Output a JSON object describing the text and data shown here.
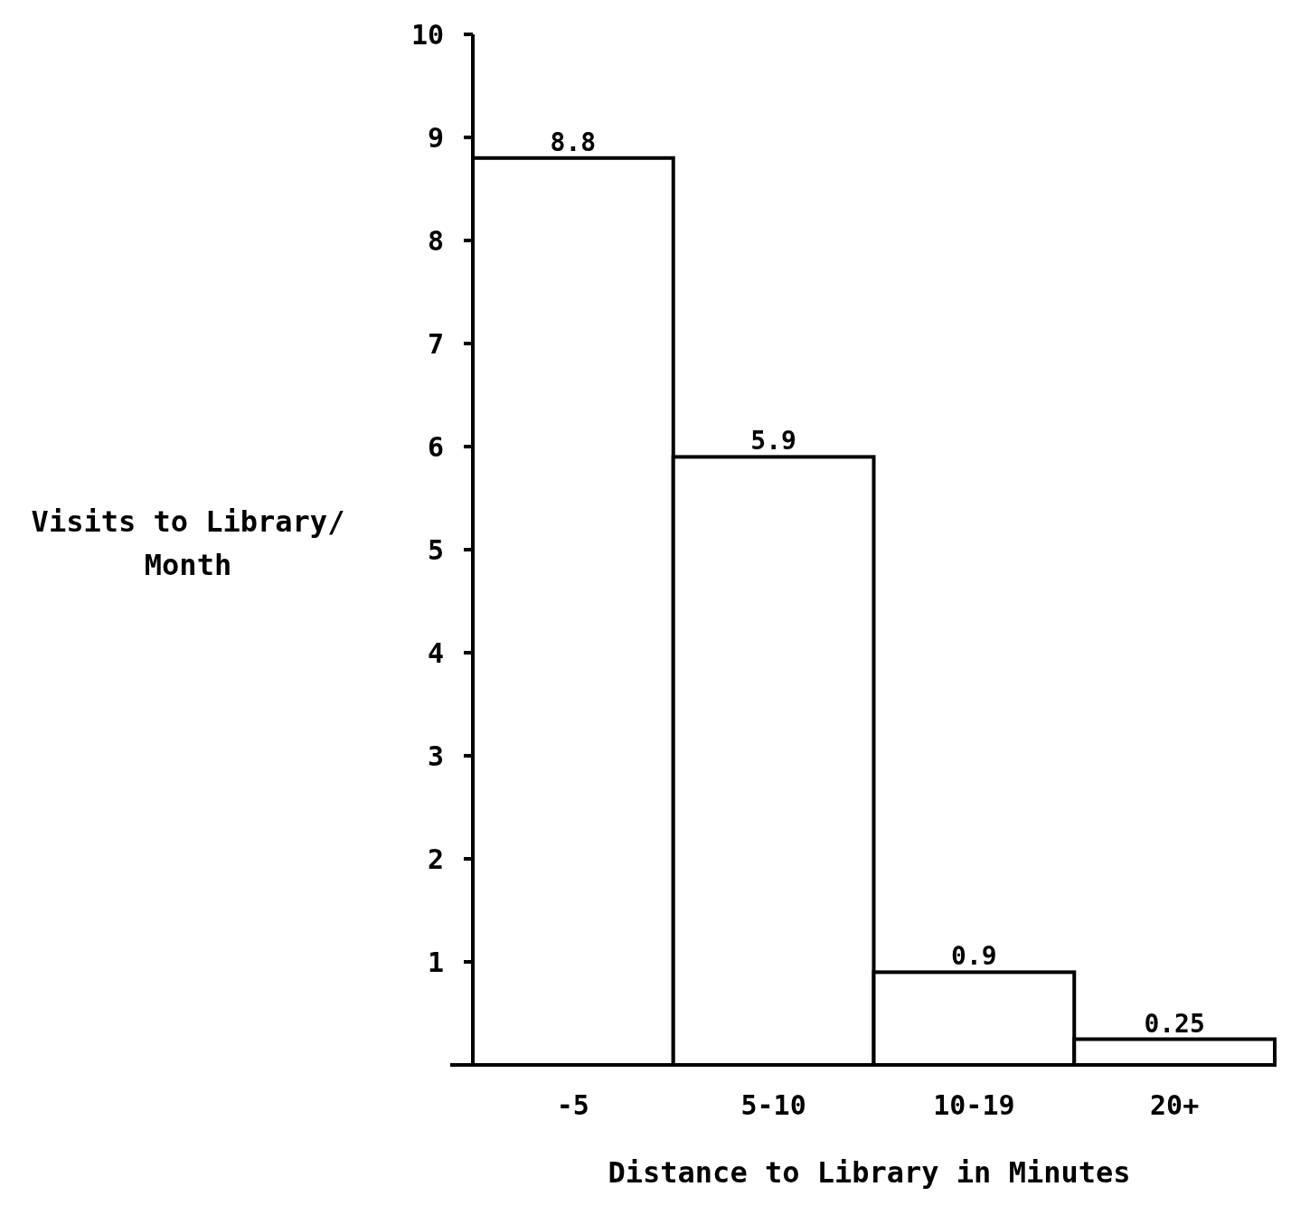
{
  "chart_data": {
    "type": "bar",
    "xlabel": "Distance to Library in Minutes",
    "ylabel": "Visits to Library/ Month",
    "categories": [
      "-5",
      "5-10",
      "10-19",
      "20+"
    ],
    "values": [
      8.8,
      5.9,
      0.9,
      0.25
    ],
    "color": "#ffffff",
    "ylim": [
      0,
      10
    ],
    "yticks": [
      1,
      2,
      3,
      4,
      5,
      6,
      7,
      8,
      9,
      10
    ],
    "data_labels": true,
    "grid": false
  }
}
